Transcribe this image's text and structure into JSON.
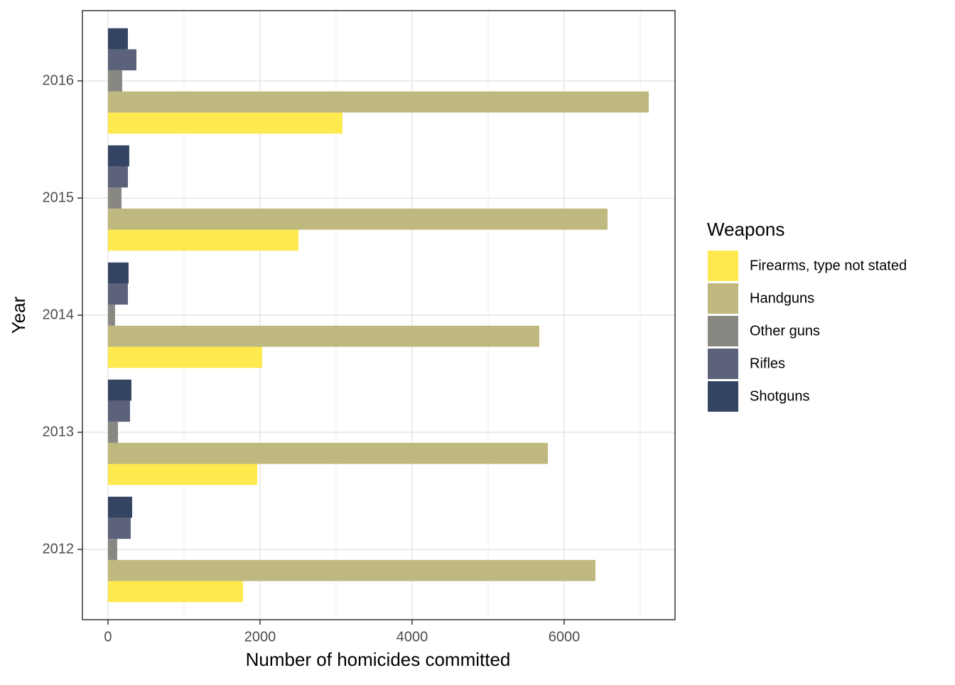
{
  "chart_data": {
    "type": "bar",
    "orientation": "horizontal",
    "x_label": "Number of homicides committed",
    "y_label": "Year",
    "categories": [
      "2012",
      "2013",
      "2014",
      "2015",
      "2016"
    ],
    "series": [
      {
        "name": "Firearms, type not stated",
        "color": "#fee94f",
        "values": [
          1776,
          1963,
          2028,
          2505,
          3084
        ]
      },
      {
        "name": "Handguns",
        "color": "#bfb87f",
        "values": [
          6411,
          5785,
          5673,
          6570,
          7112
        ]
      },
      {
        "name": "Other guns",
        "color": "#898781",
        "values": [
          121,
          131,
          93,
          178,
          187
        ]
      },
      {
        "name": "Rifles",
        "color": "#5d627b",
        "values": [
          299,
          290,
          262,
          262,
          374
        ]
      },
      {
        "name": "Shotguns",
        "color": "#344563",
        "values": [
          318,
          308,
          271,
          280,
          262
        ]
      }
    ],
    "legend_title": "Weapons",
    "legend_position": "right",
    "xlim": [
      -336,
      7458
    ],
    "xticks": [
      0,
      2000,
      4000,
      6000
    ],
    "x_minor_grid": [
      1000,
      3000,
      5000,
      7000
    ],
    "grid": true
  }
}
